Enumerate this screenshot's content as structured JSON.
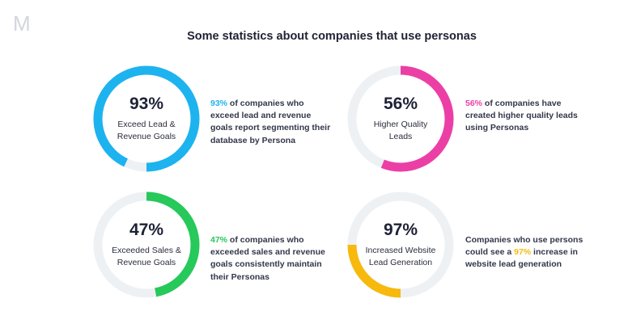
{
  "logo_text": "M",
  "title": "Some statistics about companies that use personas",
  "chart_data": {
    "type": "donut",
    "track_color": "#eef1f4",
    "charts": [
      {
        "value": 93,
        "value_label": "93%",
        "label": "Exceed Lead &\nRevenue Goals",
        "color": "#1db3ef",
        "desc_highlight": "93%",
        "desc_before": "",
        "desc_after": " of companies who exceed lead and revenue goals report segmenting their database by Persona"
      },
      {
        "value": 56,
        "value_label": "56%",
        "label": "Higher Quality\nLeads",
        "color": "#ec3fa6",
        "desc_highlight": "56%",
        "desc_before": "",
        "desc_after": " of companies have created higher quality leads using Personas"
      },
      {
        "value": 47,
        "value_label": "47%",
        "label": "Exceeded Sales &\nRevenue Goals",
        "color": "#26c95a",
        "desc_highlight": "47%",
        "desc_before": "",
        "desc_after": " of companies who exceeded sales and revenue goals consistently maintain their Personas"
      },
      {
        "value": 97,
        "ring_value": 25,
        "value_label": "97%",
        "label": "Increased Website\nLead Generation",
        "color": "#f7b90d",
        "desc_highlight": "97%",
        "desc_before": "Companies who use persons could see a ",
        "desc_after": " increase in website lead generation"
      }
    ]
  }
}
